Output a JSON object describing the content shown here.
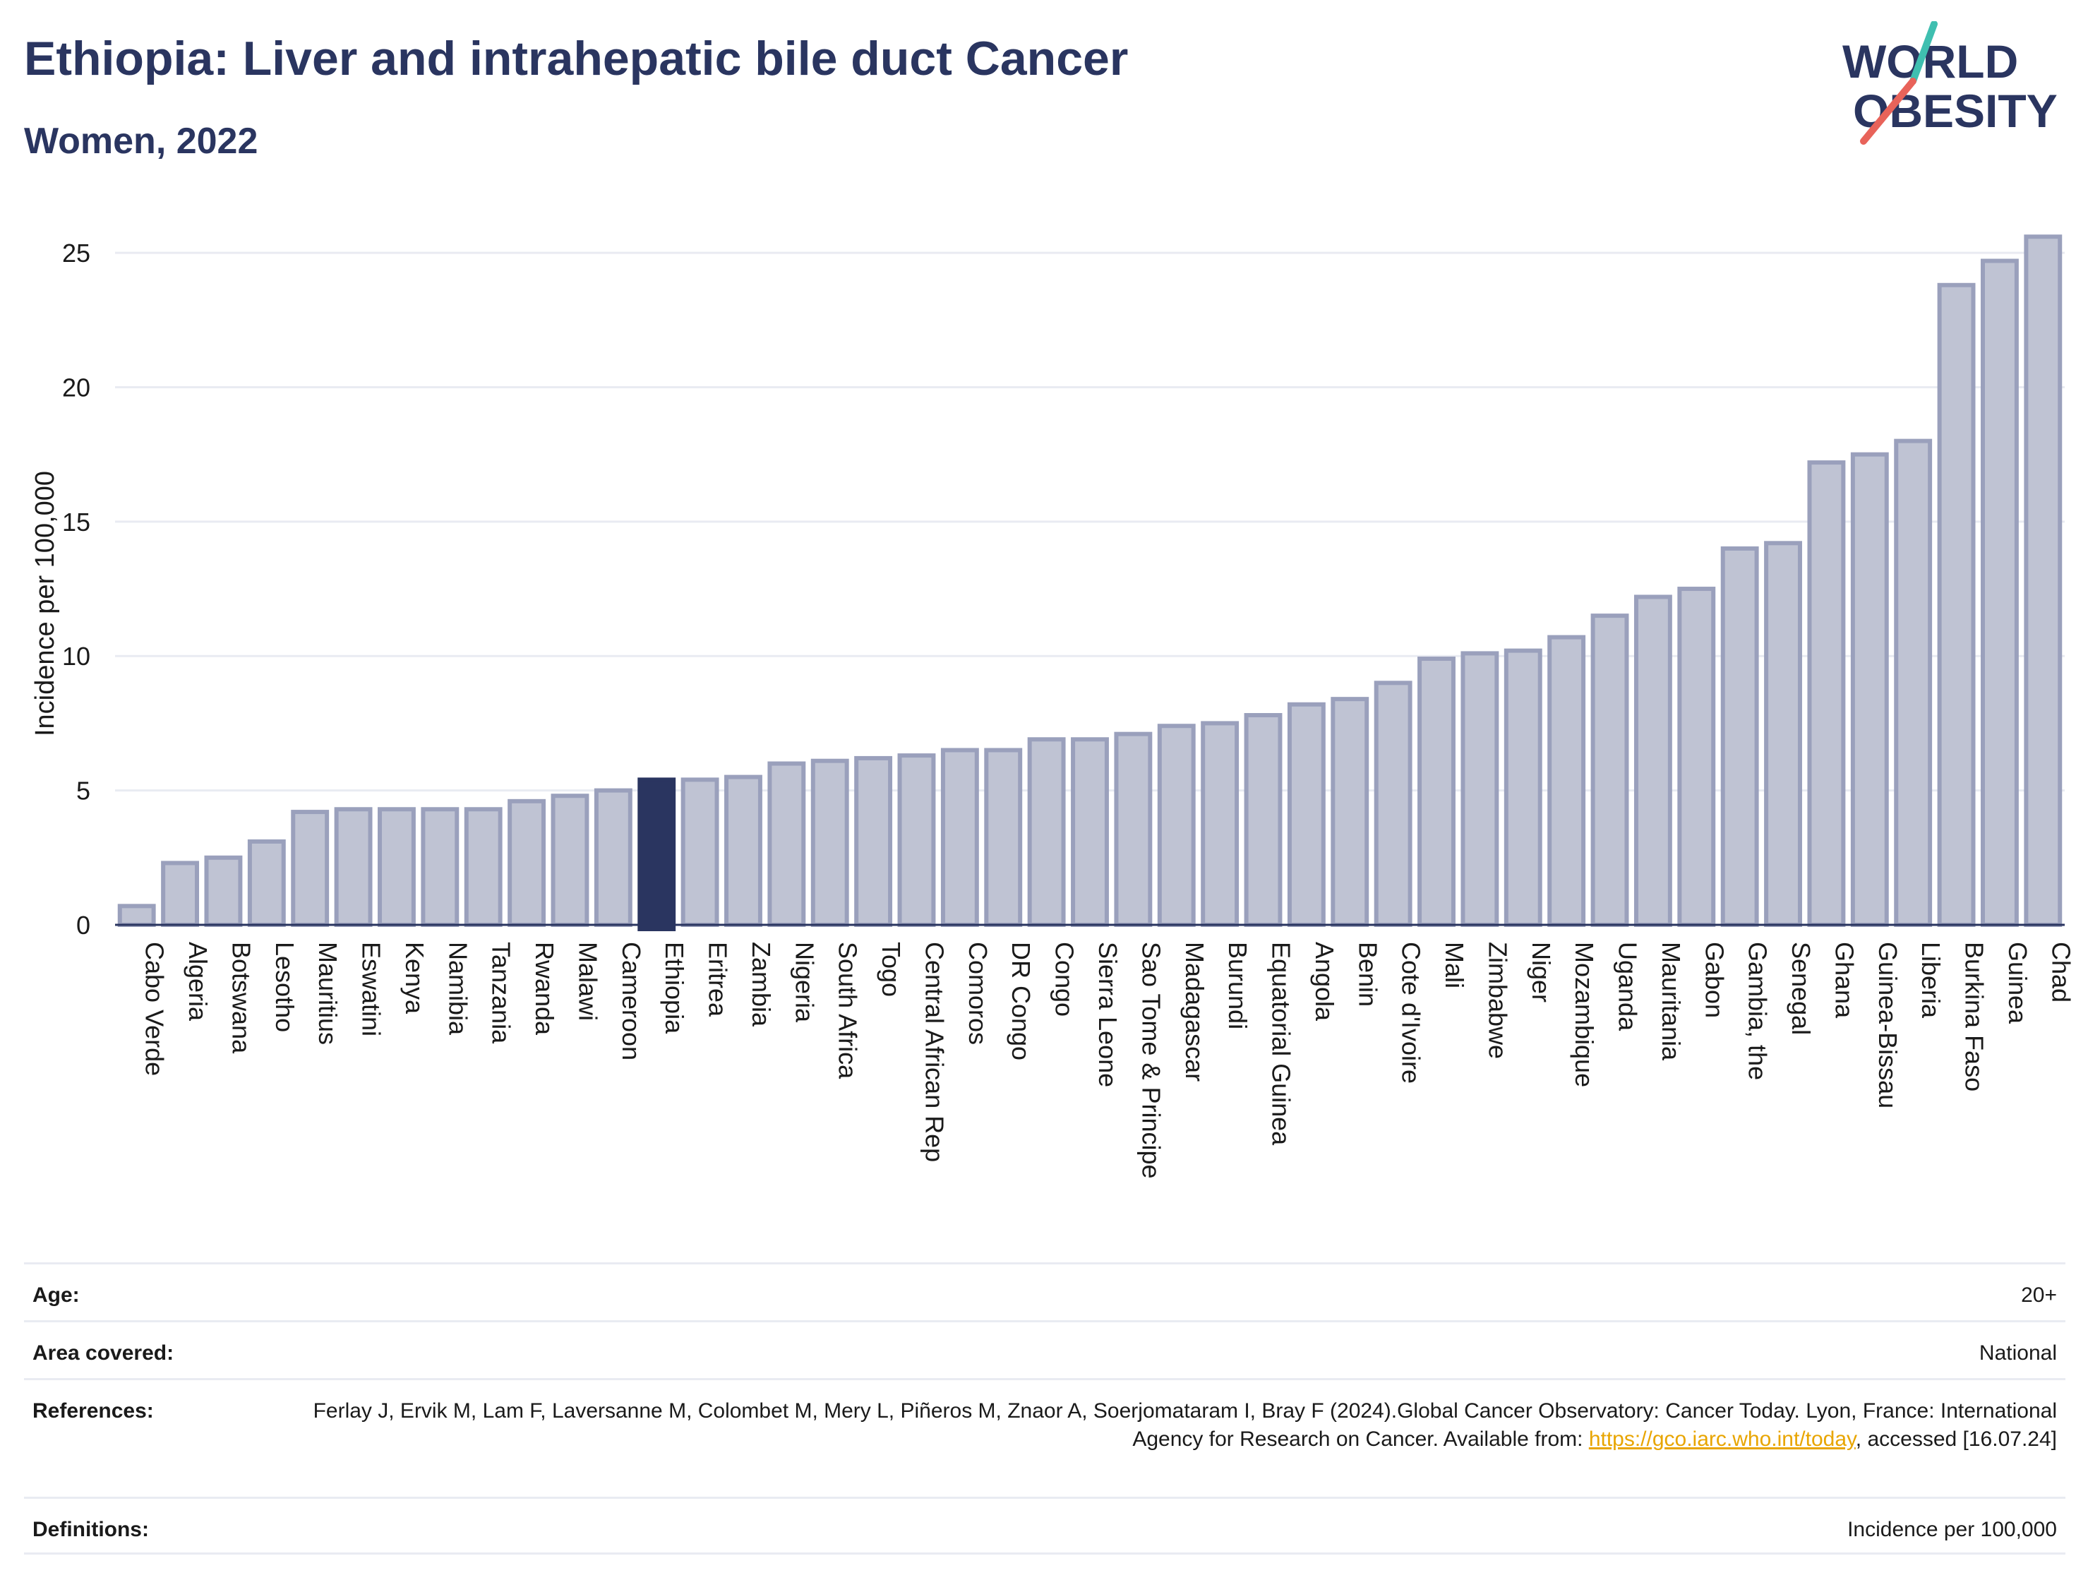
{
  "header": {
    "title": "Ethiopia: Liver and intrahepatic bile duct Cancer",
    "subtitle": "Women, 2022"
  },
  "logo": {
    "line1": "WORLD",
    "line2": "OBESITY",
    "colors": {
      "text": "#2a3560",
      "slash_teal": "#3fbfb0",
      "slash_red": "#e8635a"
    }
  },
  "chart_data": {
    "type": "bar",
    "ylabel": "Incidence per 100,000",
    "ylim": [
      0,
      26
    ],
    "yticks": [
      0,
      5,
      10,
      15,
      20,
      25
    ],
    "grid": true,
    "highlight": "Ethiopia",
    "colors": {
      "bar_fill": "#bfc3d3",
      "bar_stroke": "#9aa0bc",
      "highlight": "#2a3560",
      "gridline": "#e9ebf2",
      "baseline": "#2a3560"
    },
    "categories": [
      "Cabo Verde",
      "Algeria",
      "Botswana",
      "Lesotho",
      "Mauritius",
      "Eswatini",
      "Kenya",
      "Namibia",
      "Tanzania",
      "Rwanda",
      "Malawi",
      "Cameroon",
      "Ethiopia",
      "Eritrea",
      "Zambia",
      "Nigeria",
      "South Africa",
      "Togo",
      "Central African Rep",
      "Comoros",
      "DR Congo",
      "Congo",
      "Sierra Leone",
      "Sao Tome & Principe",
      "Madagascar",
      "Burundi",
      "Equatorial Guinea",
      "Angola",
      "Benin",
      "Cote d'Ivoire",
      "Mali",
      "Zimbabwe",
      "Niger",
      "Mozambique",
      "Uganda",
      "Mauritania",
      "Gabon",
      "Gambia, the",
      "Senegal",
      "Ghana",
      "Guinea-Bissau",
      "Liberia",
      "Burkina Faso",
      "Guinea",
      "Chad"
    ],
    "values": [
      0.7,
      2.3,
      2.5,
      3.1,
      4.2,
      4.3,
      4.3,
      4.3,
      4.3,
      4.6,
      4.8,
      5.0,
      5.4,
      5.4,
      5.5,
      6.0,
      6.1,
      6.2,
      6.3,
      6.5,
      6.5,
      6.9,
      6.9,
      7.1,
      7.4,
      7.5,
      7.8,
      8.2,
      8.4,
      9.0,
      9.9,
      10.1,
      10.2,
      10.7,
      11.5,
      12.2,
      12.5,
      14.0,
      14.2,
      17.2,
      17.5,
      18.0,
      23.8,
      24.7,
      25.6
    ]
  },
  "info": {
    "age_label": "Age:",
    "age_value": "20+",
    "area_label": "Area covered:",
    "area_value": "National",
    "references_label": "References:",
    "references_text_1": "Ferlay J, Ervik M, Lam F, Laversanne M, Colombet M, Mery L, Piñeros M, Znaor A, Soerjomataram I, Bray F (2024).Global Cancer Observatory: Cancer Today. Lyon, France: International Agency for Research on Cancer. Available from: ",
    "references_link": "https://gco.iarc.who.int/today",
    "references_text_2": ", accessed [16.07.24]",
    "definitions_label": "Definitions:",
    "definitions_value": "Incidence per 100,000"
  }
}
